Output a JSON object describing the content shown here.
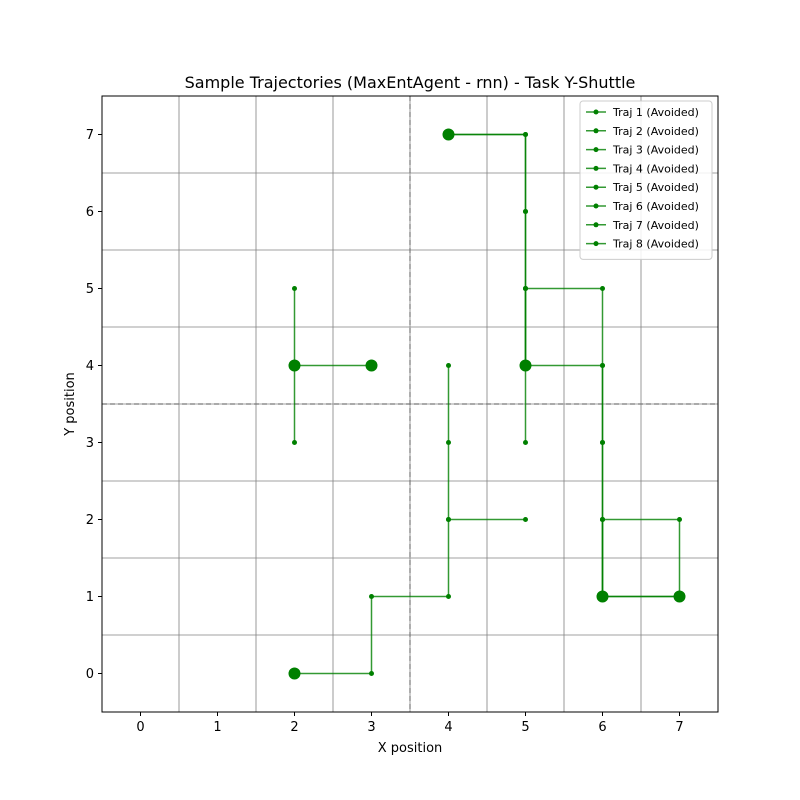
{
  "chart_data": {
    "type": "line",
    "title": "Sample Trajectories (MaxEntAgent - rnn) - Task Y-Shuttle",
    "xlabel": "X position",
    "ylabel": "Y position",
    "xlim": [
      -0.5,
      7.5
    ],
    "ylim": [
      -0.5,
      7.5
    ],
    "xticks": [
      0,
      1,
      2,
      3,
      4,
      5,
      6,
      7
    ],
    "yticks": [
      0,
      1,
      2,
      3,
      4,
      5,
      6,
      7
    ],
    "grid": true,
    "grid_lines": [
      0.5,
      1.5,
      2.5,
      3.5,
      4.5,
      5.5,
      6.5
    ],
    "divider": {
      "x": 3.5,
      "y": 3.5
    },
    "legend_position": "top-right",
    "line_color": "#008000",
    "series": [
      {
        "name": "Traj 1 (Avoided)",
        "points": [
          [
            2,
            4
          ],
          [
            2,
            5
          ],
          [
            2,
            4
          ],
          [
            2,
            3
          ],
          [
            2,
            4
          ],
          [
            3,
            4
          ]
        ]
      },
      {
        "name": "Traj 2 (Avoided)",
        "points": [
          [
            4,
            7
          ],
          [
            5,
            7
          ],
          [
            5,
            6
          ],
          [
            5,
            5
          ],
          [
            5,
            4
          ],
          [
            5,
            3
          ]
        ]
      },
      {
        "name": "Traj 3 (Avoided)",
        "points": [
          [
            6,
            1
          ],
          [
            6,
            2
          ],
          [
            6,
            3
          ],
          [
            6,
            4
          ],
          [
            5,
            4
          ]
        ]
      },
      {
        "name": "Traj 4 (Avoided)",
        "points": [
          [
            2,
            0
          ],
          [
            3,
            0
          ],
          [
            3,
            1
          ],
          [
            4,
            1
          ],
          [
            4,
            2
          ],
          [
            4,
            3
          ],
          [
            4,
            4
          ]
        ]
      },
      {
        "name": "Traj 5 (Avoided)",
        "points": [
          [
            5,
            4
          ],
          [
            5,
            5
          ],
          [
            6,
            5
          ],
          [
            6,
            4
          ],
          [
            6,
            3
          ],
          [
            6,
            2
          ],
          [
            6,
            1
          ]
        ]
      },
      {
        "name": "Traj 6 (Avoided)",
        "points": [
          [
            7,
            1
          ],
          [
            6,
            1
          ],
          [
            6,
            2
          ],
          [
            7,
            2
          ],
          [
            7,
            1
          ]
        ]
      },
      {
        "name": "Traj 7 (Avoided)",
        "points": [
          [
            4,
            7
          ],
          [
            5,
            7
          ],
          [
            5,
            6
          ],
          [
            5,
            5
          ],
          [
            5,
            4
          ]
        ]
      },
      {
        "name": "Traj 8 (Avoided)",
        "points": [
          [
            6,
            1
          ],
          [
            7,
            1
          ]
        ]
      }
    ],
    "extra_segments": [
      [
        [
          4,
          2
        ],
        [
          5,
          2
        ]
      ]
    ],
    "start_points": [
      [
        2,
        4
      ],
      [
        3,
        4
      ],
      [
        4,
        7
      ],
      [
        5,
        4
      ],
      [
        2,
        0
      ],
      [
        6,
        1
      ],
      [
        7,
        1
      ]
    ]
  }
}
